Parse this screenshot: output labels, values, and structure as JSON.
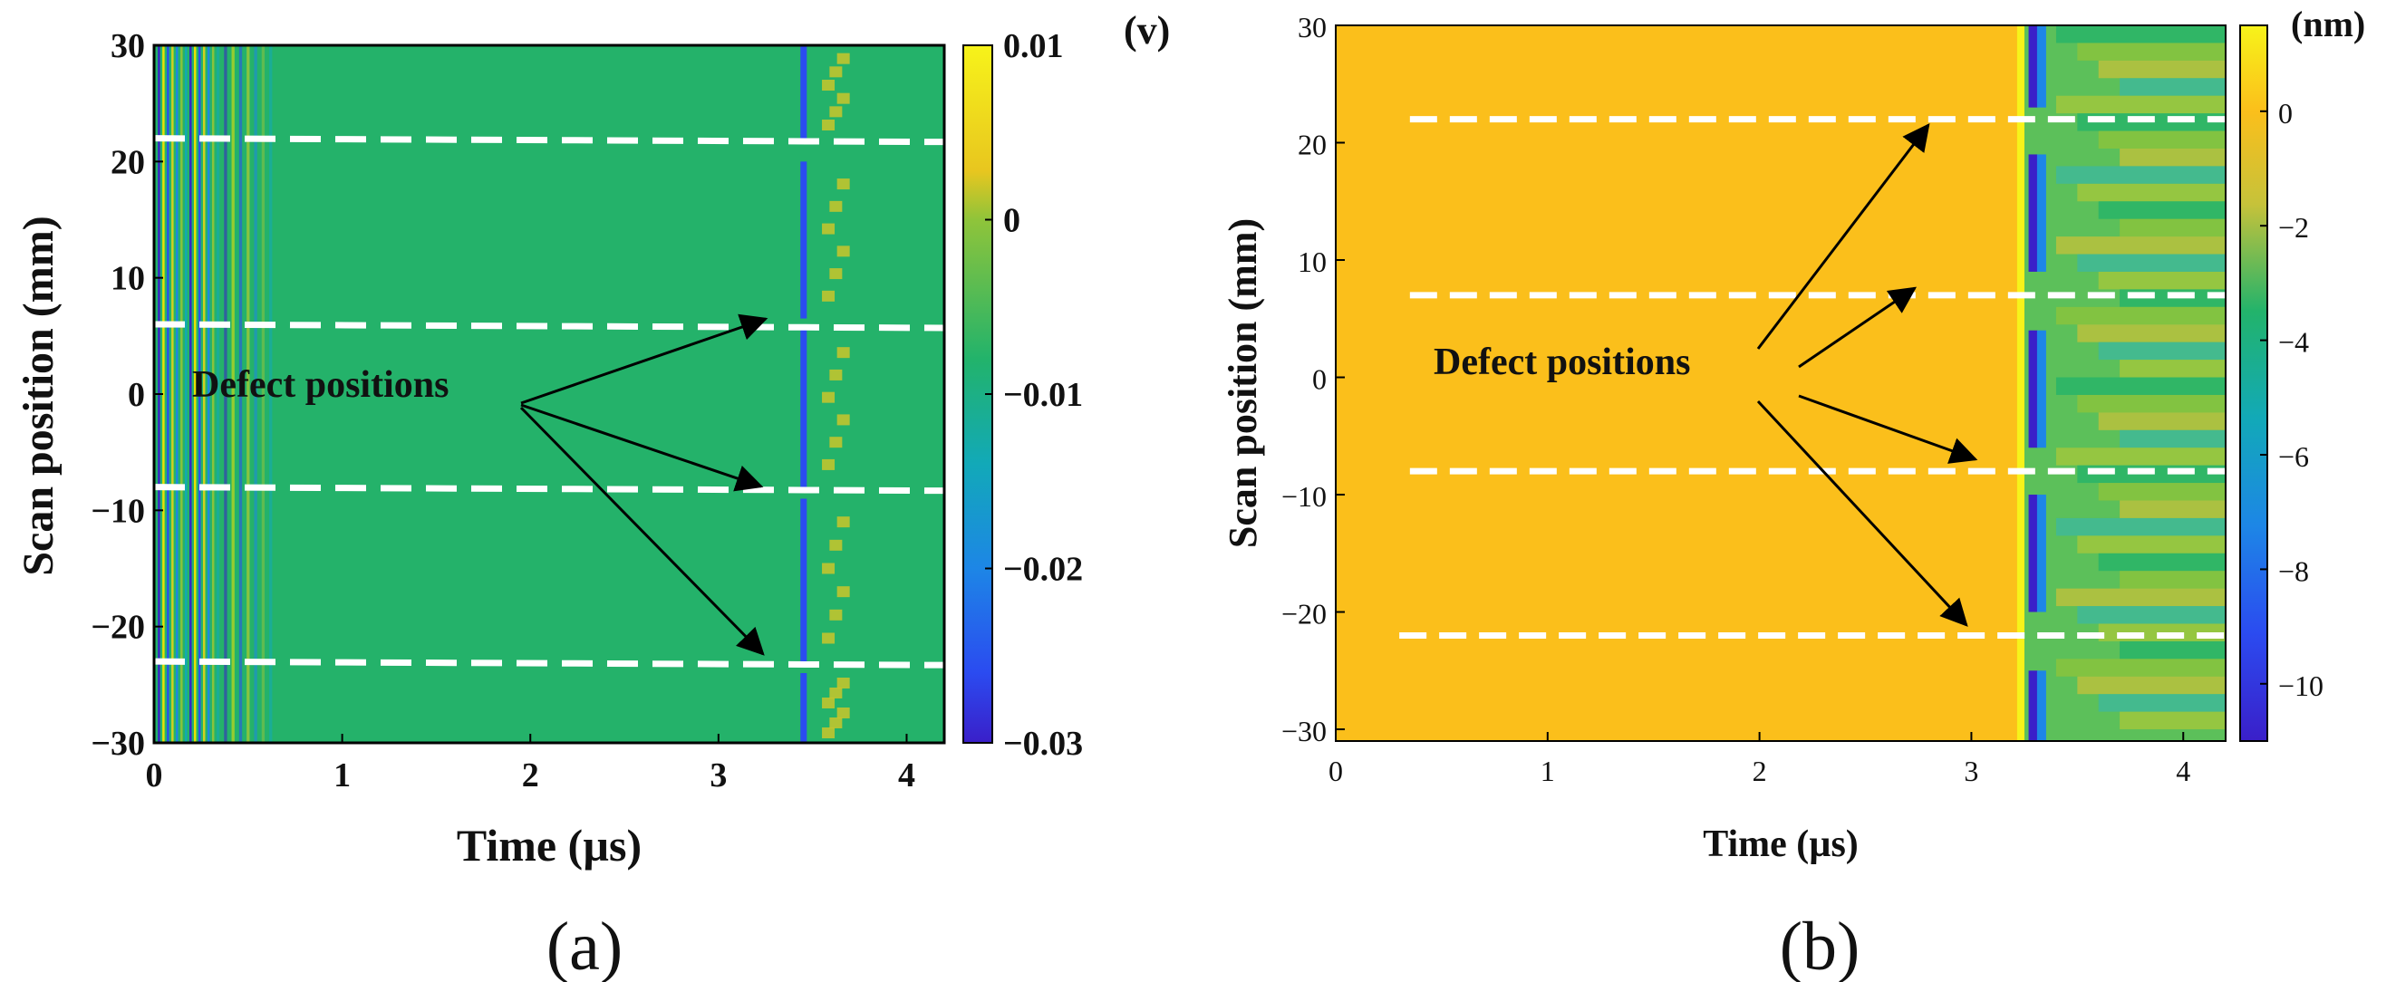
{
  "chart_data": [
    {
      "type": "heatmap",
      "panel_label": "(a)",
      "xlabel": "Time (µs)",
      "ylabel": "Scan position (mm)",
      "xlim": [
        0,
        4.2
      ],
      "ylim": [
        -30,
        30
      ],
      "x_ticks": [
        "0",
        "1",
        "2",
        "3",
        "4"
      ],
      "y_ticks": [
        "30",
        "20",
        "10",
        "0",
        "−10",
        "−20",
        "−30"
      ],
      "colorbar_unit": "(v)",
      "colorbar_range": [
        -0.03,
        0.01
      ],
      "colorbar_ticks": [
        "0.01",
        "0",
        "−0.01",
        "−0.02",
        "−0.03"
      ],
      "annotation": "Defect positions",
      "defect_positions_mm": [
        22,
        6,
        -8,
        -23
      ],
      "arrival_time_us": 3.45,
      "colors": {
        "background": "#22b36b",
        "high": "#f4e400",
        "mid": "#2cbf5a",
        "low": "#3a1fc9"
      }
    },
    {
      "type": "heatmap",
      "panel_label": "(b)",
      "xlabel": "Time (µs)",
      "ylabel": "Scan position (mm)",
      "xlim": [
        0,
        4.2
      ],
      "ylim": [
        -31,
        30
      ],
      "x_ticks": [
        "0",
        "1",
        "2",
        "3",
        "4"
      ],
      "y_ticks": [
        "30",
        "20",
        "10",
        "0",
        "−10",
        "−20",
        "−30"
      ],
      "colorbar_unit": "(nm)",
      "colorbar_range": [
        -11,
        1.5
      ],
      "colorbar_ticks": [
        "0",
        "−2",
        "−4",
        "−6",
        "−8",
        "−10"
      ],
      "annotation": "Defect positions",
      "defect_positions_mm": [
        22,
        7,
        -8,
        -22
      ],
      "arrival_time_us": 3.25,
      "colors": {
        "background": "#fbbf1b",
        "high": "#f7f31a",
        "mid": "#22b36b",
        "low": "#3a1fc9"
      }
    }
  ]
}
